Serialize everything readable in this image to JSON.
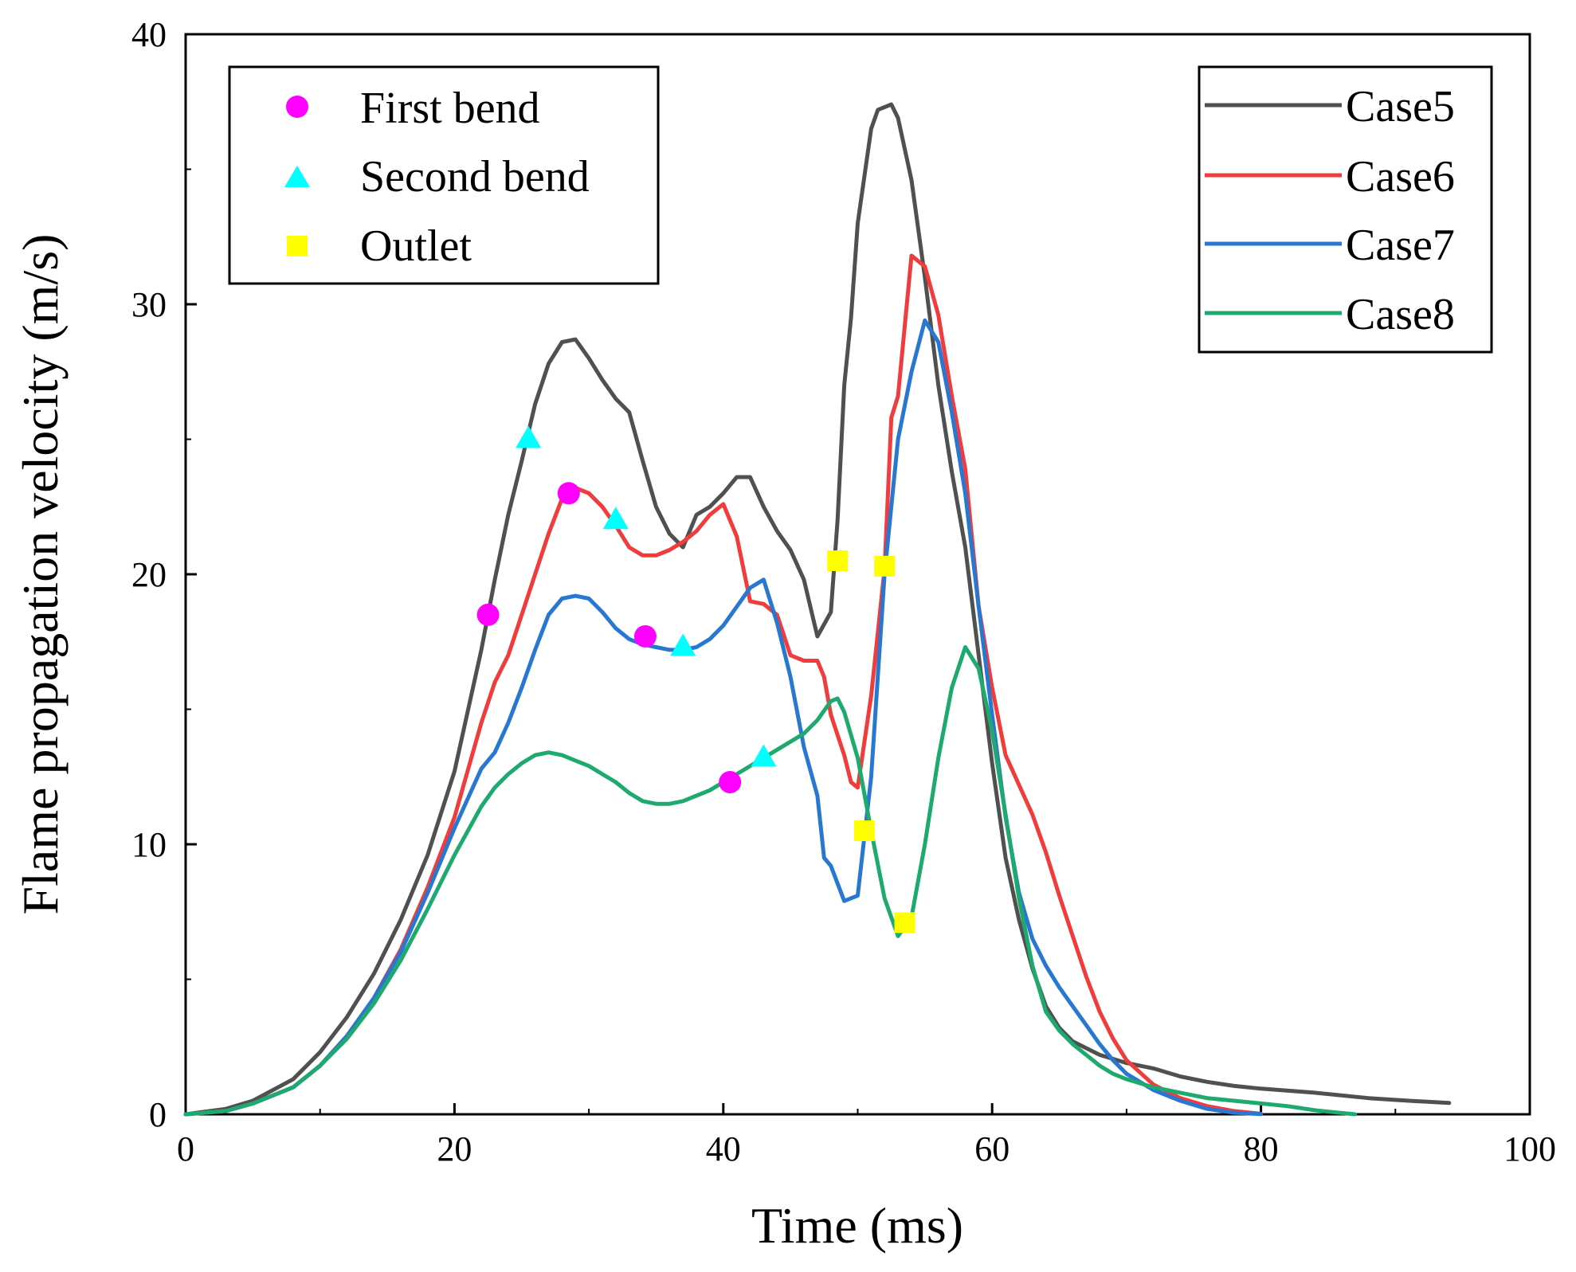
{
  "chart_data": {
    "type": "line",
    "title": "",
    "xlabel": "Time (ms)",
    "ylabel": "Flame propagation velocity (m/s)",
    "xlim": [
      0,
      100
    ],
    "ylim": [
      0,
      40
    ],
    "xticks": [
      "0",
      "20",
      "40",
      "60",
      "80",
      "100"
    ],
    "yticks": [
      "0",
      "10",
      "20",
      "30",
      "40"
    ],
    "xtick_values": [
      0,
      20,
      40,
      60,
      80,
      100
    ],
    "ytick_values": [
      0,
      10,
      20,
      30,
      40
    ],
    "grid": false,
    "series": [
      {
        "name": "Case5",
        "color": "#505050",
        "points": [
          [
            0,
            0
          ],
          [
            3,
            0.2
          ],
          [
            5,
            0.5
          ],
          [
            8,
            1.3
          ],
          [
            10,
            2.3
          ],
          [
            12,
            3.6
          ],
          [
            14,
            5.2
          ],
          [
            16,
            7.2
          ],
          [
            18,
            9.6
          ],
          [
            20,
            12.7
          ],
          [
            22,
            17.2
          ],
          [
            23,
            19.8
          ],
          [
            24,
            22.2
          ],
          [
            25,
            24.2
          ],
          [
            26,
            26.3
          ],
          [
            27,
            27.8
          ],
          [
            28,
            28.6
          ],
          [
            29,
            28.7
          ],
          [
            30,
            28.0
          ],
          [
            31,
            27.2
          ],
          [
            32,
            26.5
          ],
          [
            33,
            26.0
          ],
          [
            34,
            24.2
          ],
          [
            35,
            22.5
          ],
          [
            36,
            21.5
          ],
          [
            37,
            21.0
          ],
          [
            38,
            22.2
          ],
          [
            39,
            22.5
          ],
          [
            40,
            23.0
          ],
          [
            41,
            23.6
          ],
          [
            42,
            23.6
          ],
          [
            43,
            22.5
          ],
          [
            44,
            21.6
          ],
          [
            45,
            20.9
          ],
          [
            46,
            19.8
          ],
          [
            47,
            17.7
          ],
          [
            48,
            18.6
          ],
          [
            48.5,
            22.0
          ],
          [
            49,
            27.0
          ],
          [
            49.5,
            29.5
          ],
          [
            50,
            33.0
          ],
          [
            51,
            36.5
          ],
          [
            51.5,
            37.2
          ],
          [
            52.5,
            37.4
          ],
          [
            53,
            36.9
          ],
          [
            54,
            34.6
          ],
          [
            55,
            31.0
          ],
          [
            56,
            27.0
          ],
          [
            57,
            23.8
          ],
          [
            58,
            21.0
          ],
          [
            59,
            17.0
          ],
          [
            60,
            13.0
          ],
          [
            61,
            9.5
          ],
          [
            62,
            7.2
          ],
          [
            63,
            5.4
          ],
          [
            64,
            4.0
          ],
          [
            65,
            3.2
          ],
          [
            66,
            2.7
          ],
          [
            68,
            2.2
          ],
          [
            70,
            1.9
          ],
          [
            72,
            1.7
          ],
          [
            74,
            1.4
          ],
          [
            76,
            1.2
          ],
          [
            78,
            1.05
          ],
          [
            80,
            0.95
          ],
          [
            84,
            0.8
          ],
          [
            88,
            0.6
          ],
          [
            91,
            0.5
          ],
          [
            94,
            0.42
          ]
        ]
      },
      {
        "name": "Case6",
        "color": "#F03C3C",
        "points": [
          [
            0,
            0
          ],
          [
            3,
            0.12
          ],
          [
            5,
            0.4
          ],
          [
            8,
            1.0
          ],
          [
            10,
            1.8
          ],
          [
            12,
            2.9
          ],
          [
            14,
            4.3
          ],
          [
            16,
            6.1
          ],
          [
            18,
            8.4
          ],
          [
            20,
            11.0
          ],
          [
            22,
            14.5
          ],
          [
            23,
            16.0
          ],
          [
            24,
            17.0
          ],
          [
            25,
            18.5
          ],
          [
            26,
            20.0
          ],
          [
            27,
            21.5
          ],
          [
            28,
            22.8
          ],
          [
            29,
            23.2
          ],
          [
            30,
            23.0
          ],
          [
            31,
            22.5
          ],
          [
            32,
            21.8
          ],
          [
            33,
            21.0
          ],
          [
            34,
            20.7
          ],
          [
            35,
            20.7
          ],
          [
            36,
            20.9
          ],
          [
            37,
            21.2
          ],
          [
            38,
            21.6
          ],
          [
            39,
            22.2
          ],
          [
            40,
            22.6
          ],
          [
            41,
            21.4
          ],
          [
            42,
            19.0
          ],
          [
            43,
            18.9
          ],
          [
            44,
            18.5
          ],
          [
            45,
            17.0
          ],
          [
            46,
            16.8
          ],
          [
            47,
            16.8
          ],
          [
            47.5,
            16.2
          ],
          [
            48,
            14.8
          ],
          [
            49,
            13.3
          ],
          [
            49.5,
            12.3
          ],
          [
            50,
            12.1
          ],
          [
            51,
            15.5
          ],
          [
            52,
            20.2
          ],
          [
            52.5,
            25.8
          ],
          [
            53,
            26.6
          ],
          [
            54,
            31.8
          ],
          [
            55,
            31.4
          ],
          [
            56,
            29.6
          ],
          [
            57,
            26.6
          ],
          [
            58,
            23.9
          ],
          [
            59,
            18.8
          ],
          [
            60,
            15.8
          ],
          [
            61,
            13.3
          ],
          [
            62,
            12.2
          ],
          [
            63,
            11.1
          ],
          [
            64,
            9.7
          ],
          [
            65,
            8.1
          ],
          [
            66,
            6.6
          ],
          [
            67,
            5.1
          ],
          [
            68,
            3.8
          ],
          [
            69,
            2.8
          ],
          [
            70,
            2.0
          ],
          [
            72,
            1.1
          ],
          [
            74,
            0.6
          ],
          [
            76,
            0.3
          ],
          [
            78,
            0.12
          ],
          [
            80,
            0.02
          ]
        ]
      },
      {
        "name": "Case7",
        "color": "#2878D2",
        "points": [
          [
            0,
            0
          ],
          [
            3,
            0.12
          ],
          [
            5,
            0.4
          ],
          [
            8,
            1.0
          ],
          [
            10,
            1.8
          ],
          [
            12,
            2.9
          ],
          [
            14,
            4.3
          ],
          [
            16,
            6.0
          ],
          [
            18,
            8.2
          ],
          [
            20,
            10.6
          ],
          [
            22,
            12.8
          ],
          [
            23,
            13.4
          ],
          [
            24,
            14.5
          ],
          [
            25,
            15.8
          ],
          [
            26,
            17.2
          ],
          [
            27,
            18.5
          ],
          [
            28,
            19.1
          ],
          [
            29,
            19.2
          ],
          [
            30,
            19.1
          ],
          [
            31,
            18.6
          ],
          [
            32,
            18.0
          ],
          [
            33,
            17.6
          ],
          [
            34,
            17.4
          ],
          [
            35,
            17.3
          ],
          [
            36,
            17.2
          ],
          [
            37,
            17.2
          ],
          [
            38,
            17.3
          ],
          [
            39,
            17.6
          ],
          [
            40,
            18.1
          ],
          [
            41,
            18.8
          ],
          [
            42,
            19.5
          ],
          [
            43,
            19.8
          ],
          [
            44,
            18.2
          ],
          [
            45,
            16.2
          ],
          [
            46,
            13.6
          ],
          [
            47,
            11.8
          ],
          [
            47.5,
            9.5
          ],
          [
            48,
            9.2
          ],
          [
            49,
            7.9
          ],
          [
            50,
            8.1
          ],
          [
            51,
            12.5
          ],
          [
            52,
            20.0
          ],
          [
            53,
            25.0
          ],
          [
            54,
            27.5
          ],
          [
            55,
            29.4
          ],
          [
            56,
            28.6
          ],
          [
            57,
            26.0
          ],
          [
            58,
            23.0
          ],
          [
            59,
            18.8
          ],
          [
            60,
            14.8
          ],
          [
            61,
            11.0
          ],
          [
            62,
            8.2
          ],
          [
            63,
            6.5
          ],
          [
            64,
            5.5
          ],
          [
            65,
            4.7
          ],
          [
            66,
            4.0
          ],
          [
            67,
            3.3
          ],
          [
            68,
            2.6
          ],
          [
            69,
            2.0
          ],
          [
            70,
            1.5
          ],
          [
            72,
            0.9
          ],
          [
            74,
            0.5
          ],
          [
            76,
            0.2
          ],
          [
            78,
            0.06
          ],
          [
            80,
            0.01
          ]
        ]
      },
      {
        "name": "Case8",
        "color": "#1EAA6E",
        "points": [
          [
            0,
            0
          ],
          [
            3,
            0.12
          ],
          [
            5,
            0.4
          ],
          [
            8,
            1.0
          ],
          [
            10,
            1.8
          ],
          [
            12,
            2.8
          ],
          [
            14,
            4.1
          ],
          [
            16,
            5.7
          ],
          [
            18,
            7.6
          ],
          [
            20,
            9.6
          ],
          [
            22,
            11.4
          ],
          [
            23,
            12.1
          ],
          [
            24,
            12.6
          ],
          [
            25,
            13.0
          ],
          [
            26,
            13.3
          ],
          [
            27,
            13.4
          ],
          [
            28,
            13.3
          ],
          [
            29,
            13.1
          ],
          [
            30,
            12.9
          ],
          [
            31,
            12.6
          ],
          [
            32,
            12.3
          ],
          [
            33,
            11.9
          ],
          [
            34,
            11.6
          ],
          [
            35,
            11.5
          ],
          [
            36,
            11.5
          ],
          [
            37,
            11.6
          ],
          [
            38,
            11.8
          ],
          [
            39,
            12.0
          ],
          [
            40,
            12.3
          ],
          [
            41,
            12.6
          ],
          [
            42,
            12.9
          ],
          [
            43,
            13.2
          ],
          [
            44,
            13.5
          ],
          [
            45,
            13.8
          ],
          [
            46,
            14.1
          ],
          [
            47,
            14.6
          ],
          [
            48,
            15.3
          ],
          [
            48.5,
            15.4
          ],
          [
            49,
            14.9
          ],
          [
            50,
            13.2
          ],
          [
            51,
            10.5
          ],
          [
            52,
            8.0
          ],
          [
            53,
            6.6
          ],
          [
            54,
            7.3
          ],
          [
            55,
            10.0
          ],
          [
            56,
            13.2
          ],
          [
            57,
            15.8
          ],
          [
            58,
            17.3
          ],
          [
            59,
            16.5
          ],
          [
            60,
            14.2
          ],
          [
            61,
            11.1
          ],
          [
            62,
            8.0
          ],
          [
            63,
            5.5
          ],
          [
            64,
            3.8
          ],
          [
            65,
            3.1
          ],
          [
            66,
            2.6
          ],
          [
            67,
            2.2
          ],
          [
            68,
            1.8
          ],
          [
            69,
            1.5
          ],
          [
            70,
            1.3
          ],
          [
            72,
            1.0
          ],
          [
            74,
            0.8
          ],
          [
            76,
            0.6
          ],
          [
            78,
            0.5
          ],
          [
            80,
            0.4
          ],
          [
            82,
            0.3
          ],
          [
            84,
            0.15
          ],
          [
            86,
            0.05
          ],
          [
            87,
            0.0
          ]
        ]
      }
    ],
    "markers": [
      {
        "name": "First bend",
        "shape": "circle",
        "color": "#FF00FF",
        "points": [
          [
            22.5,
            18.5
          ],
          [
            28.5,
            23.0
          ],
          [
            34.2,
            17.7
          ],
          [
            40.5,
            12.3
          ]
        ]
      },
      {
        "name": "Second bend",
        "shape": "triangle",
        "color": "#00FFFF",
        "points": [
          [
            25.5,
            25.0
          ],
          [
            32.0,
            22.0
          ],
          [
            37.0,
            17.3
          ],
          [
            43.0,
            13.2
          ]
        ]
      },
      {
        "name": "Outlet",
        "shape": "square",
        "color": "#FFFF00",
        "points": [
          [
            48.5,
            20.5
          ],
          [
            52.0,
            20.3
          ],
          [
            50.5,
            10.5
          ],
          [
            53.5,
            7.1
          ]
        ]
      }
    ],
    "legends": {
      "markers": {
        "position": "top-left",
        "entries": [
          "First bend",
          "Second bend",
          "Outlet"
        ]
      },
      "lines": {
        "position": "top-right",
        "entries": [
          "Case5",
          "Case6",
          "Case7",
          "Case8"
        ]
      }
    }
  }
}
